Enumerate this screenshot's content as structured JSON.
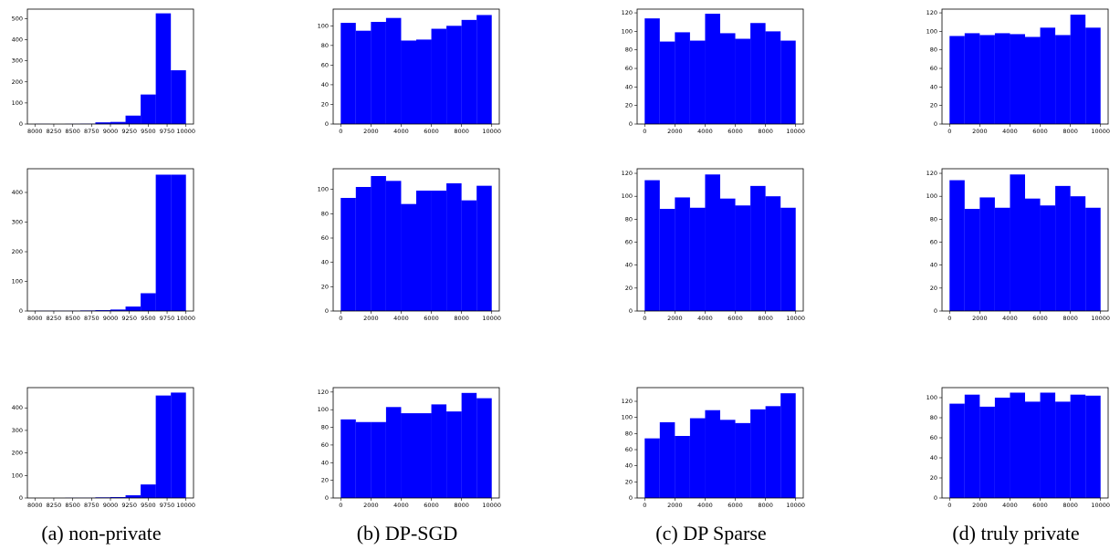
{
  "chart_data": [
    {
      "type": "histogram",
      "color": "#0000ff",
      "bins": [
        8000,
        8200,
        8400,
        8600,
        8800,
        9000,
        9200,
        9400,
        9600,
        9800,
        10000
      ],
      "values": [
        1,
        0,
        1,
        2,
        8,
        10,
        40,
        140,
        525,
        255
      ],
      "xlim": [
        7900,
        10100
      ],
      "xticks": [
        8000,
        8250,
        8500,
        8750,
        9000,
        9250,
        9500,
        9750,
        10000
      ],
      "ylim": [
        0,
        545
      ],
      "yticks": [
        0,
        100,
        200,
        300,
        400,
        500
      ]
    },
    {
      "type": "histogram",
      "color": "#0000ff",
      "bins": [
        0,
        1000,
        2000,
        3000,
        4000,
        5000,
        6000,
        7000,
        8000,
        9000,
        10000
      ],
      "values": [
        103,
        95,
        104,
        108,
        85,
        86,
        97,
        100,
        106,
        111
      ],
      "xlim": [
        -500,
        10500
      ],
      "xticks": [
        0,
        2000,
        4000,
        6000,
        8000,
        10000
      ],
      "ylim": [
        0,
        117
      ],
      "yticks": [
        0,
        20,
        40,
        60,
        80,
        100
      ]
    },
    {
      "type": "histogram",
      "color": "#0000ff",
      "bins": [
        0,
        1000,
        2000,
        3000,
        4000,
        5000,
        6000,
        7000,
        8000,
        9000,
        10000
      ],
      "values": [
        114,
        89,
        99,
        90,
        119,
        98,
        92,
        109,
        100,
        90
      ],
      "xlim": [
        -500,
        10500
      ],
      "xticks": [
        0,
        2000,
        4000,
        6000,
        8000,
        10000
      ],
      "ylim": [
        0,
        124
      ],
      "yticks": [
        0,
        20,
        40,
        60,
        80,
        100,
        120
      ]
    },
    {
      "type": "histogram",
      "color": "#0000ff",
      "bins": [
        0,
        1000,
        2000,
        3000,
        4000,
        5000,
        6000,
        7000,
        8000,
        9000,
        10000
      ],
      "values": [
        95,
        98,
        96,
        98,
        97,
        94,
        104,
        96,
        118,
        104
      ],
      "xlim": [
        -500,
        10500
      ],
      "xticks": [
        0,
        2000,
        4000,
        6000,
        8000,
        10000
      ],
      "ylim": [
        0,
        124
      ],
      "yticks": [
        0,
        20,
        40,
        60,
        80,
        100,
        120
      ]
    },
    {
      "type": "histogram",
      "color": "#0000ff",
      "bins": [
        8000,
        8200,
        8400,
        8600,
        8800,
        9000,
        9200,
        9400,
        9600,
        9800,
        10000
      ],
      "values": [
        1,
        1,
        1,
        2,
        3,
        5,
        15,
        60,
        460,
        460
      ],
      "xlim": [
        7900,
        10100
      ],
      "xticks": [
        8000,
        8250,
        8500,
        8750,
        9000,
        9250,
        9500,
        9750,
        10000
      ],
      "ylim": [
        0,
        480
      ],
      "yticks": [
        0,
        100,
        200,
        300,
        400
      ]
    },
    {
      "type": "histogram",
      "color": "#0000ff",
      "bins": [
        0,
        1000,
        2000,
        3000,
        4000,
        5000,
        6000,
        7000,
        8000,
        9000,
        10000
      ],
      "values": [
        93,
        102,
        111,
        107,
        88,
        99,
        99,
        105,
        91,
        103
      ],
      "xlim": [
        -500,
        10500
      ],
      "xticks": [
        0,
        2000,
        4000,
        6000,
        8000,
        10000
      ],
      "ylim": [
        0,
        117
      ],
      "yticks": [
        0,
        20,
        40,
        60,
        80,
        100
      ]
    },
    {
      "type": "histogram",
      "color": "#0000ff",
      "bins": [
        0,
        1000,
        2000,
        3000,
        4000,
        5000,
        6000,
        7000,
        8000,
        9000,
        10000
      ],
      "values": [
        114,
        89,
        99,
        90,
        119,
        98,
        92,
        109,
        100,
        90
      ],
      "xlim": [
        -500,
        10500
      ],
      "xticks": [
        0,
        2000,
        4000,
        6000,
        8000,
        10000
      ],
      "ylim": [
        0,
        124
      ],
      "yticks": [
        0,
        20,
        40,
        60,
        80,
        100,
        120
      ]
    },
    {
      "type": "histogram",
      "color": "#0000ff",
      "bins": [
        0,
        1000,
        2000,
        3000,
        4000,
        5000,
        6000,
        7000,
        8000,
        9000,
        10000
      ],
      "values": [
        114,
        89,
        99,
        90,
        119,
        98,
        92,
        109,
        100,
        90
      ],
      "xlim": [
        -500,
        10500
      ],
      "xticks": [
        0,
        2000,
        4000,
        6000,
        8000,
        10000
      ],
      "ylim": [
        0,
        124
      ],
      "yticks": [
        0,
        20,
        40,
        60,
        80,
        100,
        120
      ]
    },
    {
      "type": "histogram",
      "color": "#0000ff",
      "bins": [
        8000,
        8200,
        8400,
        8600,
        8800,
        9000,
        9200,
        9400,
        9600,
        9800,
        10000
      ],
      "values": [
        0,
        0,
        1,
        1,
        3,
        4,
        12,
        60,
        455,
        468
      ],
      "xlim": [
        7900,
        10100
      ],
      "xticks": [
        8000,
        8250,
        8500,
        8750,
        9000,
        9250,
        9500,
        9750,
        10000
      ],
      "ylim": [
        0,
        490
      ],
      "yticks": [
        0,
        100,
        200,
        300,
        400
      ]
    },
    {
      "type": "histogram",
      "color": "#0000ff",
      "bins": [
        0,
        1000,
        2000,
        3000,
        4000,
        5000,
        6000,
        7000,
        8000,
        9000,
        10000
      ],
      "values": [
        89,
        86,
        86,
        103,
        96,
        96,
        106,
        98,
        119,
        113
      ],
      "xlim": [
        -500,
        10500
      ],
      "xticks": [
        0,
        2000,
        4000,
        6000,
        8000,
        10000
      ],
      "ylim": [
        0,
        125
      ],
      "yticks": [
        0,
        20,
        40,
        60,
        80,
        100,
        120
      ]
    },
    {
      "type": "histogram",
      "color": "#0000ff",
      "bins": [
        0,
        1000,
        2000,
        3000,
        4000,
        5000,
        6000,
        7000,
        8000,
        9000,
        10000
      ],
      "values": [
        74,
        94,
        77,
        99,
        109,
        97,
        93,
        110,
        114,
        130
      ],
      "xlim": [
        -500,
        10500
      ],
      "xticks": [
        0,
        2000,
        4000,
        6000,
        8000,
        10000
      ],
      "ylim": [
        0,
        137
      ],
      "yticks": [
        0,
        20,
        40,
        60,
        80,
        100,
        120
      ]
    },
    {
      "type": "histogram",
      "color": "#0000ff",
      "bins": [
        0,
        1000,
        2000,
        3000,
        4000,
        5000,
        6000,
        7000,
        8000,
        9000,
        10000
      ],
      "values": [
        94,
        103,
        91,
        100,
        105,
        96,
        105,
        96,
        103,
        102
      ],
      "xlim": [
        -500,
        10500
      ],
      "xticks": [
        0,
        2000,
        4000,
        6000,
        8000,
        10000
      ],
      "ylim": [
        0,
        110
      ],
      "yticks": [
        0,
        20,
        40,
        60,
        80,
        100
      ]
    }
  ],
  "captions": [
    "(a) non-private",
    "(b) DP-SGD",
    "(c) DP Sparse",
    "(d) truly private"
  ]
}
